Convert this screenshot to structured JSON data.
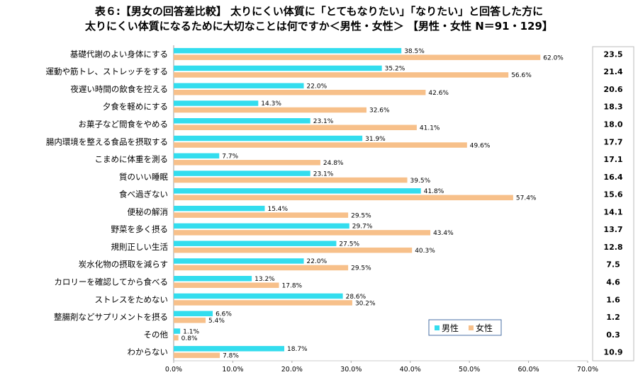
{
  "chart_data": {
    "type": "bar",
    "title_line1": "表６:【男女の回答差比較】 太りにくい体質に「とてもなりたい」「なりたい」と回答した方に",
    "title_line2": "太りにくい体質になるために大切なことは何ですか＜男性・女性＞ 【男性・女性 N＝91・129】",
    "categories": [
      "基礎代謝のよい身体にする",
      "運動や筋トレ、ストレッチをする",
      "夜遅い時間の飲食を控える",
      "夕食を軽めにする",
      "お菓子など間食をやめる",
      "腸内環境を整える食品を摂取する",
      "こまめに体重を測る",
      "質のいい睡眠",
      "食べ過ぎない",
      "便秘の解消",
      "野菜を多く摂る",
      "規則正しい生活",
      "炭水化物の摂取を減らす",
      "カロリーを確認してから食べる",
      "ストレスをためない",
      "整腸剤などサプリメントを摂る",
      "その他",
      "わからない"
    ],
    "series": [
      {
        "name": "男性",
        "color": "#33ddee",
        "values": [
          38.5,
          35.2,
          22.0,
          14.3,
          23.1,
          31.9,
          7.7,
          23.1,
          41.8,
          15.4,
          29.7,
          27.5,
          22.0,
          13.2,
          28.6,
          6.6,
          1.1,
          18.7
        ],
        "labels": [
          "38.5%",
          "35.2%",
          "22.0%",
          "14.3%",
          "23.1%",
          "31.9%",
          "7.7%",
          "23.1%",
          "41.8%",
          "15.4%",
          "29.7%",
          "27.5%",
          "22.0%",
          "13.2%",
          "28.6%",
          "6.6%",
          "1.1%",
          "18.7%"
        ]
      },
      {
        "name": "女性",
        "color": "#f7c08a",
        "values": [
          62.0,
          56.6,
          42.6,
          32.6,
          41.1,
          49.6,
          24.8,
          39.5,
          57.4,
          29.5,
          43.4,
          40.3,
          29.5,
          17.8,
          30.2,
          5.4,
          0.8,
          7.8
        ],
        "labels": [
          "62.0%",
          "56.6%",
          "42.6%",
          "32.6%",
          "41.1%",
          "49.6%",
          "24.8%",
          "39.5%",
          "57.4%",
          "29.5%",
          "43.4%",
          "40.3%",
          "29.5%",
          "17.8%",
          "30.2%",
          "5.4%",
          "0.8%",
          "7.8%"
        ]
      }
    ],
    "differences": [
      "23.5",
      "21.4",
      "20.6",
      "18.3",
      "18.0",
      "17.7",
      "17.1",
      "16.4",
      "15.6",
      "14.1",
      "13.7",
      "12.8",
      "7.5",
      "4.6",
      "1.6",
      "1.2",
      "0.3",
      "10.9"
    ],
    "xlim": [
      0,
      70
    ],
    "x_ticks": [
      "0.0%",
      "10.0%",
      "20.0%",
      "30.0%",
      "40.0%",
      "50.0%",
      "60.0%",
      "70.0%"
    ],
    "legend_position": "lower-right",
    "grid": false
  }
}
